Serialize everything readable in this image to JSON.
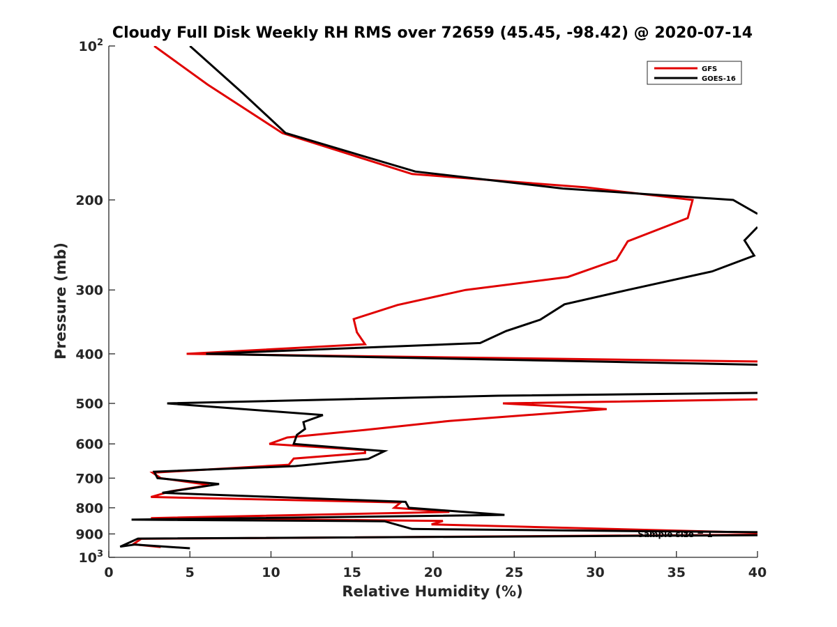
{
  "chart_data": {
    "type": "line",
    "title": "Cloudy Full Disk Weekly RH RMS over 72659 (45.45, -98.42) @ 2020-07-14",
    "xlabel": "Relative Humidity (%)",
    "ylabel": "Pressure (mb)",
    "xlim": [
      0,
      40
    ],
    "ylim": [
      100,
      1000
    ],
    "y_scale": "log",
    "y_reversed": true,
    "x_ticks": [
      "0",
      "5",
      "10",
      "15",
      "20",
      "25",
      "30",
      "35",
      "40"
    ],
    "y_ticks": [
      {
        "value": 100,
        "base": "10",
        "exp": "2"
      },
      {
        "value": 200,
        "label": "200"
      },
      {
        "value": 300,
        "label": "300"
      },
      {
        "value": 400,
        "label": "400"
      },
      {
        "value": 500,
        "label": "500"
      },
      {
        "value": 600,
        "label": "600"
      },
      {
        "value": 700,
        "label": "700"
      },
      {
        "value": 800,
        "label": "800"
      },
      {
        "value": 900,
        "label": "900"
      },
      {
        "value": 1000,
        "base": "10",
        "exp": "3"
      }
    ],
    "grid": false,
    "legend_position": "top-right",
    "annotation": "Sample size = 1",
    "series": [
      {
        "name": "GFS",
        "color": "#e00000",
        "points": [
          [
            2.8,
            100
          ],
          [
            6.1,
            119
          ],
          [
            10.7,
            148
          ],
          [
            18.7,
            178
          ],
          [
            29.4,
            189
          ],
          [
            36.0,
            200
          ],
          [
            35.7,
            217
          ],
          [
            32.0,
            241
          ],
          [
            31.3,
            262
          ],
          [
            28.3,
            283
          ],
          [
            22.0,
            300
          ],
          [
            17.8,
            321
          ],
          [
            15.1,
            342
          ],
          [
            15.3,
            363
          ],
          [
            15.8,
            383
          ],
          [
            4.8,
            400
          ],
          [
            40.0,
            414
          ]
        ]
      },
      {
        "name": "GFS",
        "color": "#e00000",
        "points": [
          [
            40.0,
            491
          ],
          [
            24.3,
            500
          ],
          [
            30.7,
            513
          ],
          [
            21.0,
            541
          ],
          [
            15.9,
            563
          ],
          [
            11.0,
            583
          ],
          [
            9.9,
            600
          ],
          [
            15.8,
            617
          ],
          [
            15.8,
            625
          ],
          [
            11.4,
            641
          ],
          [
            11.1,
            659
          ],
          [
            2.7,
            683
          ],
          [
            3.2,
            700
          ],
          [
            6.2,
            722
          ],
          [
            3.8,
            743
          ],
          [
            2.6,
            762
          ],
          [
            18.0,
            781
          ],
          [
            17.6,
            800
          ],
          [
            21.0,
            815
          ],
          [
            2.6,
            838
          ],
          [
            20.6,
            849
          ],
          [
            19.9,
            862
          ],
          [
            40.0,
            895
          ]
        ]
      },
      {
        "name": "GFS",
        "color": "#e00000",
        "points": [
          [
            40.0,
            903
          ],
          [
            2.0,
            920
          ],
          [
            1.5,
            943
          ],
          [
            3.2,
            955
          ]
        ]
      },
      {
        "name": "GOES-16",
        "color": "#000000",
        "points": [
          [
            5.0,
            100
          ],
          [
            8.3,
            124
          ],
          [
            10.9,
            148
          ],
          [
            18.9,
            176
          ],
          [
            28.0,
            190
          ],
          [
            38.5,
            200
          ],
          [
            40.0,
            213
          ]
        ]
      },
      {
        "name": "GOES-16",
        "color": "#000000",
        "points": [
          [
            40.0,
            226
          ],
          [
            39.2,
            240
          ],
          [
            39.8,
            257
          ],
          [
            37.2,
            276
          ],
          [
            32.0,
            300
          ],
          [
            28.1,
            320
          ],
          [
            26.6,
            343
          ],
          [
            24.5,
            361
          ],
          [
            22.9,
            381
          ],
          [
            6.0,
            400
          ],
          [
            40.0,
            420
          ]
        ]
      },
      {
        "name": "GOES-16",
        "color": "#000000",
        "points": [
          [
            40.0,
            477
          ],
          [
            24.0,
            483
          ],
          [
            3.6,
            500
          ],
          [
            13.2,
            527
          ],
          [
            12.0,
            544
          ],
          [
            12.1,
            561
          ],
          [
            11.6,
            576
          ],
          [
            11.4,
            600
          ],
          [
            17.0,
            620
          ],
          [
            16.0,
            642
          ],
          [
            11.5,
            663
          ],
          [
            2.8,
            680
          ],
          [
            3.0,
            700
          ],
          [
            6.8,
            719
          ],
          [
            3.3,
            748
          ],
          [
            18.3,
            779
          ],
          [
            18.5,
            800
          ],
          [
            24.4,
            826
          ],
          [
            1.4,
            844
          ],
          [
            17.0,
            850
          ],
          [
            18.7,
            880
          ],
          [
            40.0,
            893
          ]
        ]
      },
      {
        "name": "GOES-16",
        "color": "#000000",
        "points": [
          [
            40.0,
            905
          ],
          [
            1.8,
            919
          ],
          [
            0.7,
            953
          ],
          [
            1.6,
            944
          ],
          [
            5.0,
            960
          ]
        ]
      }
    ],
    "legend": [
      {
        "name": "GFS",
        "color": "#e00000"
      },
      {
        "name": "GOES-16",
        "color": "#000000"
      }
    ]
  }
}
